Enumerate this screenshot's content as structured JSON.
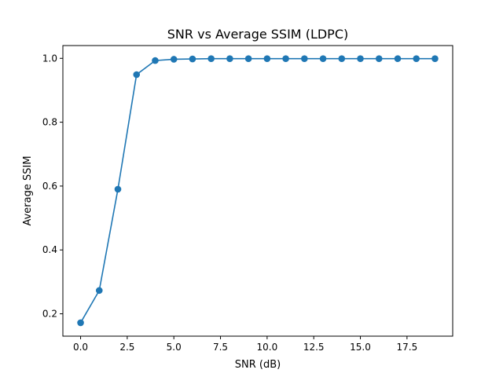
{
  "chart_data": {
    "type": "line",
    "title": "SNR vs Average SSIM (LDPC)",
    "xlabel": "SNR (dB)",
    "ylabel": "Average SSIM",
    "xlim": [
      -0.95,
      19.95
    ],
    "ylim": [
      0.13,
      1.04
    ],
    "xticks": [
      0.0,
      2.5,
      5.0,
      7.5,
      10.0,
      12.5,
      15.0,
      17.5
    ],
    "xtick_labels": [
      "0.0",
      "2.5",
      "5.0",
      "7.5",
      "10.0",
      "12.5",
      "15.0",
      "17.5"
    ],
    "yticks": [
      0.2,
      0.4,
      0.6,
      0.8,
      1.0
    ],
    "ytick_labels": [
      "0.2",
      "0.4",
      "0.6",
      "0.8",
      "1.0"
    ],
    "grid": false,
    "series": [
      {
        "color": "#1f77b4",
        "marker": "circle",
        "x": [
          0,
          1,
          2,
          3,
          4,
          5,
          6,
          7,
          8,
          9,
          10,
          11,
          12,
          13,
          14,
          15,
          16,
          17,
          18,
          19
        ],
        "y": [
          0.172,
          0.273,
          0.59,
          0.949,
          0.993,
          0.997,
          0.998,
          0.999,
          0.999,
          0.999,
          0.999,
          0.999,
          0.999,
          0.999,
          0.999,
          0.999,
          0.999,
          0.999,
          0.999,
          0.999
        ]
      }
    ]
  }
}
